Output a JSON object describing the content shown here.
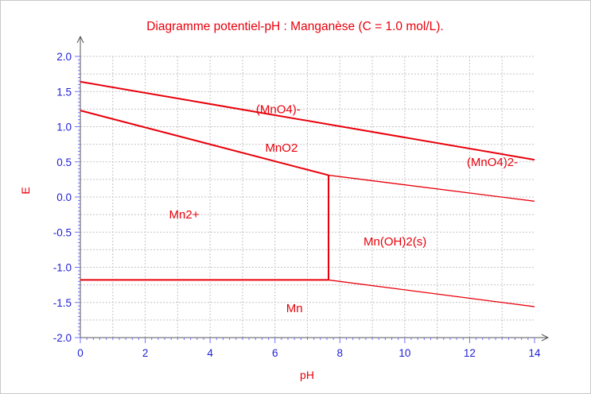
{
  "chart_data": {
    "type": "line",
    "title": "Diagramme potentiel-pH : Manganèse (C = 1.0 mol/L).",
    "xlabel": "pH",
    "ylabel": "E",
    "xlim": [
      0,
      14
    ],
    "ylim": [
      -2.0,
      2.0
    ],
    "grid": true,
    "x_ticks": [
      "0",
      "2",
      "4",
      "6",
      "8",
      "10",
      "12",
      "14"
    ],
    "y_ticks": [
      "2.0",
      "1.5",
      "1.0",
      "0.5",
      "0.0",
      "-0.5",
      "-1.0",
      "-1.5",
      "-2.0"
    ],
    "series": [
      {
        "style": "thick",
        "points": [
          [
            0,
            1.64
          ],
          [
            14,
            0.53
          ]
        ]
      },
      {
        "style": "thick",
        "points": [
          [
            0,
            1.23
          ],
          [
            7.65,
            0.31
          ]
        ]
      },
      {
        "style": "thick",
        "points": [
          [
            7.65,
            0.31
          ],
          [
            7.65,
            -1.18
          ]
        ]
      },
      {
        "style": "thick",
        "points": [
          [
            0,
            -1.18
          ],
          [
            7.65,
            -1.18
          ]
        ]
      },
      {
        "style": "thin",
        "points": [
          [
            7.65,
            0.31
          ],
          [
            14,
            -0.06
          ]
        ]
      },
      {
        "style": "thin",
        "points": [
          [
            7.65,
            -1.18
          ],
          [
            14,
            -1.56
          ]
        ]
      }
    ],
    "annotations": [
      {
        "text": "(MnO4)-",
        "x": 6.1,
        "y": 1.25
      },
      {
        "text": "MnO2",
        "x": 6.2,
        "y": 0.7
      },
      {
        "text": "(MnO4)2-",
        "x": 12.7,
        "y": 0.5
      },
      {
        "text": "Mn2+",
        "x": 3.2,
        "y": -0.25
      },
      {
        "text": "Mn(OH)2(s)",
        "x": 9.7,
        "y": -0.63
      },
      {
        "text": "Mn",
        "x": 6.6,
        "y": -1.58
      }
    ]
  }
}
